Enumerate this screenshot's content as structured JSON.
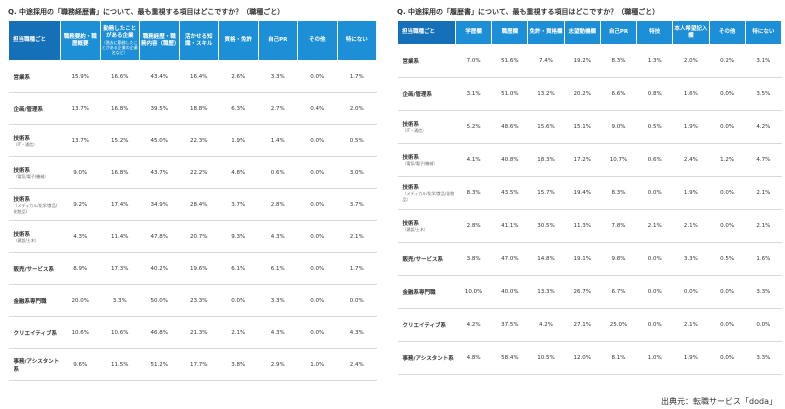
{
  "left": {
    "title": "Q. 中途採用の「職務経歴書」について、最も重視する項目はどこですか？（職種ごと）",
    "header": [
      "担当職種ごと",
      "職務要約・職歴概要",
      "勤務したことがある企業",
      "職務経歴・職務内容（職歴）",
      "活かせる知識・スキル",
      "資格・免許",
      "自己PR",
      "その他",
      "特にない"
    ],
    "header_note": "（過去に勤務したことがある企業の企業名など）",
    "rows": [
      {
        "category": "営業系",
        "values": [
          "15.9%",
          "16.6%",
          "43.4%",
          "16.4%",
          "2.6%",
          "3.3%",
          "0.0%",
          "1.7%"
        ]
      },
      {
        "category": "企画/管理系",
        "values": [
          "13.7%",
          "16.8%",
          "39.5%",
          "18.8%",
          "6.3%",
          "2.7%",
          "0.4%",
          "2.0%"
        ]
      },
      {
        "category": "技術系",
        "sub": "（IT・通信）",
        "values": [
          "13.7%",
          "15.2%",
          "45.0%",
          "22.3%",
          "1.9%",
          "1.4%",
          "0.0%",
          "0.5%"
        ]
      },
      {
        "category": "技術系",
        "sub": "（電気/電子/機械）",
        "values": [
          "9.0%",
          "16.8%",
          "43.7%",
          "22.2%",
          "4.8%",
          "0.6%",
          "0.0%",
          "3.0%"
        ]
      },
      {
        "category": "技術系",
        "sub": "（メディカル/化学/食品/化粧品）",
        "values": [
          "9.2%",
          "17.4%",
          "34.9%",
          "28.4%",
          "3.7%",
          "2.8%",
          "0.0%",
          "3.7%"
        ]
      },
      {
        "category": "技術系",
        "sub": "（建設/土木）",
        "values": [
          "4.3%",
          "11.4%",
          "47.8%",
          "20.7%",
          "9.3%",
          "4.3%",
          "0.0%",
          "2.1%"
        ]
      },
      {
        "category": "販売/サービス系",
        "values": [
          "8.9%",
          "17.3%",
          "40.2%",
          "19.6%",
          "6.1%",
          "6.1%",
          "0.0%",
          "1.7%"
        ]
      },
      {
        "category": "金融系専門職",
        "values": [
          "20.0%",
          "3.3%",
          "50.0%",
          "23.3%",
          "0.0%",
          "3.3%",
          "0.0%",
          "0.0%"
        ]
      },
      {
        "category": "クリエイティブ系",
        "values": [
          "10.6%",
          "10.6%",
          "46.8%",
          "21.3%",
          "2.1%",
          "4.3%",
          "0.0%",
          "4.3%"
        ]
      },
      {
        "category": "事務/アシスタント系",
        "values": [
          "9.6%",
          "11.5%",
          "51.2%",
          "17.7%",
          "3.8%",
          "2.9%",
          "1.0%",
          "2.4%"
        ]
      }
    ]
  },
  "right": {
    "title": "Q. 中途採用の「履歴書」について、最も重視する項目はどこですか？（職種ごと）",
    "header": [
      "担当職種ごと",
      "学歴欄",
      "職歴欄",
      "免許・資格欄",
      "志望動機欄",
      "自己PR",
      "特技",
      "本人希望記入欄",
      "その他",
      "特にない"
    ],
    "rows": [
      {
        "category": "営業系",
        "values": [
          "7.0%",
          "51.6%",
          "7.4%",
          "19.2%",
          "8.3%",
          "1.3%",
          "2.0%",
          "0.2%",
          "3.1%"
        ]
      },
      {
        "category": "企画/管理系",
        "values": [
          "3.1%",
          "51.0%",
          "13.2%",
          "20.2%",
          "6.6%",
          "0.8%",
          "1.6%",
          "0.0%",
          "3.5%"
        ]
      },
      {
        "category": "技術系",
        "sub": "（IT・通信）",
        "values": [
          "5.2%",
          "48.6%",
          "15.6%",
          "15.1%",
          "9.0%",
          "0.5%",
          "1.9%",
          "0.0%",
          "4.2%"
        ]
      },
      {
        "category": "技術系",
        "sub": "（電気/電子/機械）",
        "values": [
          "4.1%",
          "40.8%",
          "18.3%",
          "17.2%",
          "10.7%",
          "0.6%",
          "2.4%",
          "1.2%",
          "4.7%"
        ]
      },
      {
        "category": "技術系",
        "sub": "（メディカル/化学/食品/化粧品）",
        "values": [
          "8.3%",
          "43.5%",
          "15.7%",
          "19.4%",
          "8.3%",
          "0.0%",
          "1.9%",
          "0.0%",
          "2.1%"
        ]
      },
      {
        "category": "技術系",
        "sub": "（建設/土木）",
        "values": [
          "2.8%",
          "41.1%",
          "30.5%",
          "11.3%",
          "7.8%",
          "2.1%",
          "2.1%",
          "0.0%",
          "2.1%"
        ]
      },
      {
        "category": "販売/サービス系",
        "values": [
          "3.8%",
          "47.0%",
          "14.8%",
          "19.1%",
          "9.8%",
          "0.0%",
          "3.3%",
          "0.5%",
          "1.6%"
        ]
      },
      {
        "category": "金融系専門職",
        "values": [
          "10.0%",
          "40.0%",
          "13.3%",
          "26.7%",
          "6.7%",
          "0.0%",
          "0.0%",
          "0.0%",
          "3.3%"
        ]
      },
      {
        "category": "クリエイティブ系",
        "values": [
          "4.2%",
          "37.5%",
          "4.2%",
          "27.1%",
          "25.0%",
          "0.0%",
          "2.1%",
          "0.0%",
          "0.0%"
        ]
      },
      {
        "category": "事務/アシスタント系",
        "values": [
          "4.8%",
          "58.4%",
          "10.5%",
          "12.0%",
          "8.1%",
          "1.0%",
          "1.9%",
          "0.0%",
          "3.3%"
        ]
      }
    ]
  },
  "source": "出典元：転職サービス「doda」"
}
